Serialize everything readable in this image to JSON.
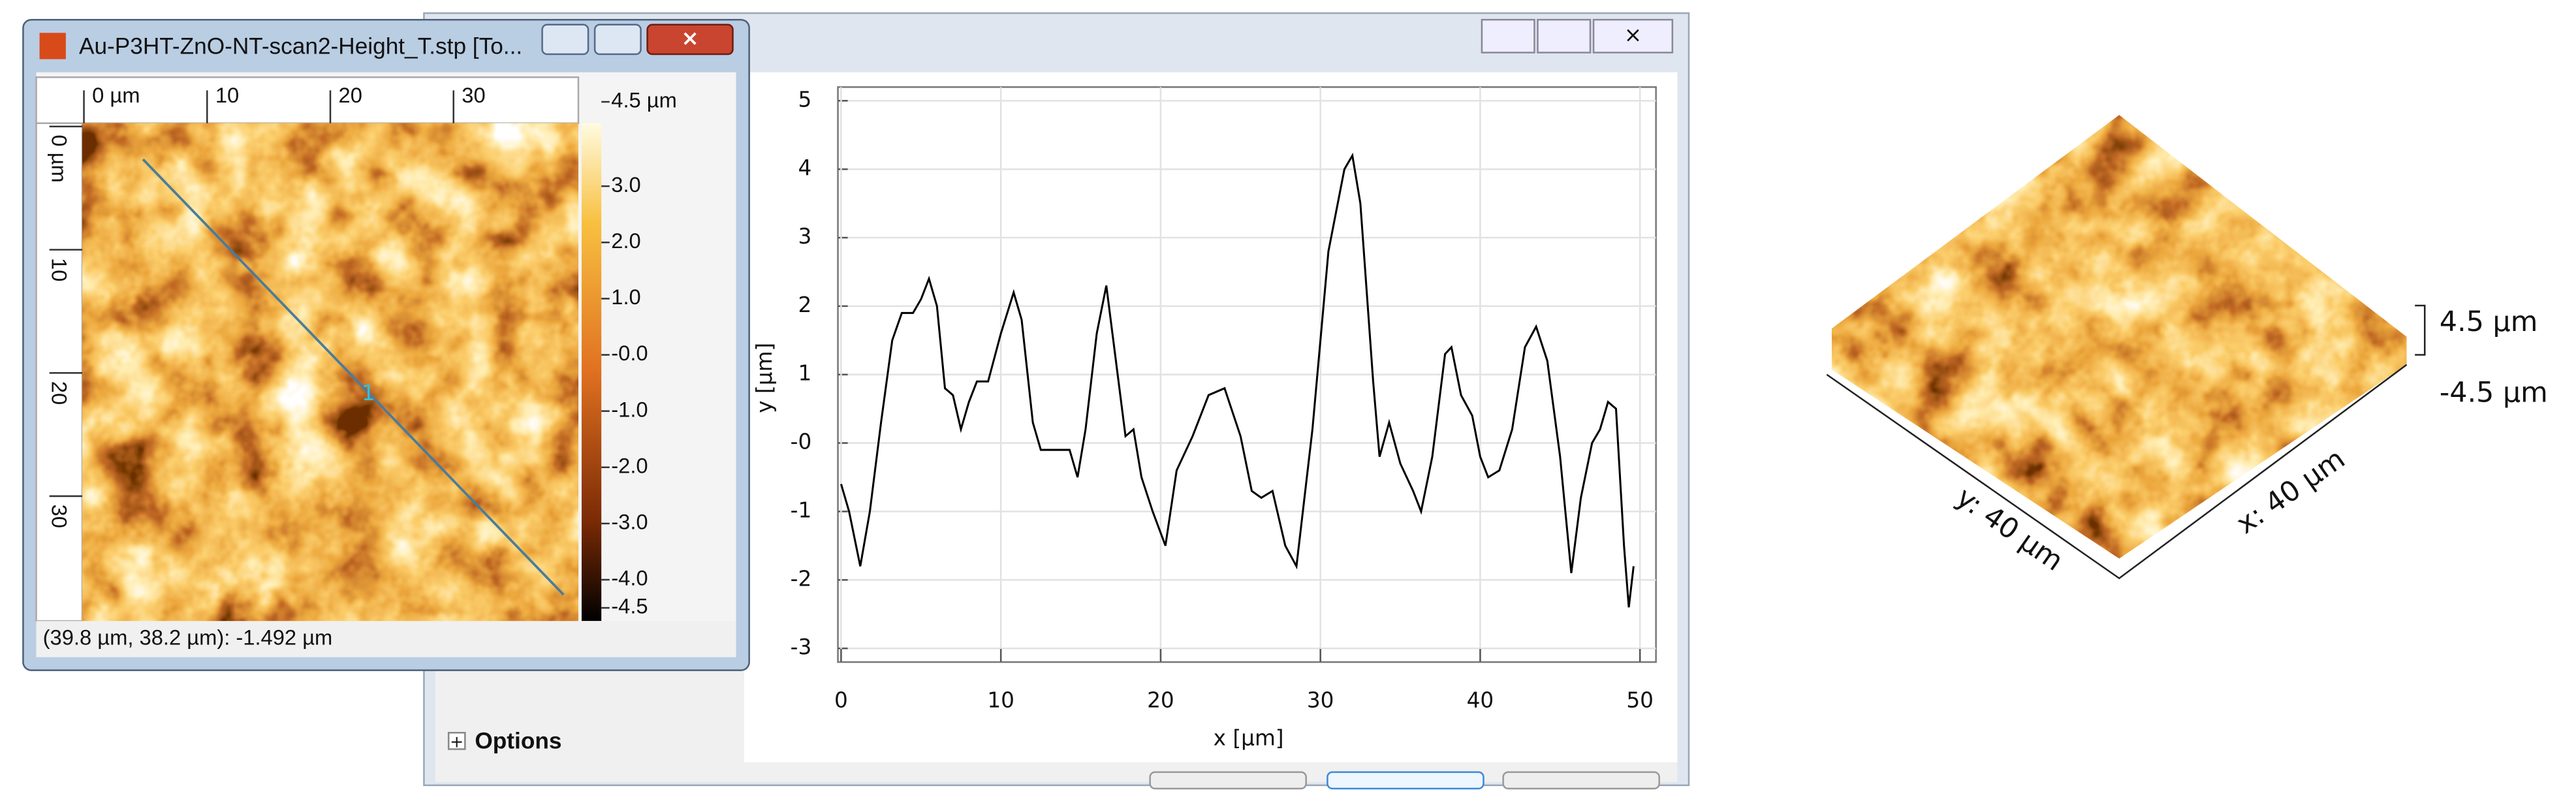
{
  "window": {
    "title": "Au-P3HT-ZnO-NT-scan2-Height_T.stp [To...",
    "status": "(39.8 µm, 38.2 µm): -1.492 µm",
    "profile_label": "1",
    "ruler_x": {
      "xlim": [
        0,
        40
      ],
      "ticks": [
        {
          "value": 0,
          "label": "0 µm"
        },
        10,
        20,
        30
      ]
    },
    "ruler_y": {
      "ylim": [
        0,
        40
      ],
      "ticks": [
        {
          "value": 0,
          "label": "0 µm"
        },
        10,
        20,
        30
      ]
    },
    "colorbar": {
      "zlim": [
        -4.5,
        4.5
      ],
      "ticks": [
        {
          "value": 4.5,
          "label": "4.5 µm"
        },
        {
          "value": 3,
          "label": "3.0"
        },
        {
          "value": 2,
          "label": "2.0"
        },
        {
          "value": 1,
          "label": "1.0"
        },
        {
          "value": 0,
          "label": "-0.0"
        },
        {
          "value": -1,
          "label": "-1.0"
        },
        {
          "value": -2,
          "label": "-2.0"
        },
        {
          "value": -3,
          "label": "-3.0"
        },
        {
          "value": -4,
          "label": "-4.0"
        },
        {
          "value": -4.5,
          "label": "-4.5"
        }
      ]
    }
  },
  "dialog": {
    "options": "Options"
  },
  "chart_data": {
    "type": "line",
    "xlabel": "x [µm]",
    "ylabel": "y [µm]",
    "x": [
      0,
      0.5,
      1.2,
      1.8,
      2.5,
      3.2,
      3.8,
      4.5,
      5,
      5.5,
      6,
      6.5,
      7,
      7.5,
      8,
      8.5,
      9.2,
      10,
      10.8,
      11.3,
      12,
      12.5,
      13.5,
      14.3,
      14.8,
      15.3,
      16,
      16.6,
      17.2,
      17.8,
      18.3,
      18.8,
      19.5,
      20.3,
      21,
      22,
      23,
      24,
      25,
      25.7,
      26.3,
      27,
      27.8,
      28.5,
      29.5,
      30.5,
      31.5,
      32,
      32.5,
      33.3,
      33.7,
      34.3,
      35,
      35.8,
      36.3,
      37,
      37.8,
      38.2,
      38.8,
      39.5,
      40,
      40.5,
      41.2,
      42,
      42.8,
      43.5,
      44.2,
      45,
      45.7,
      46.3,
      47,
      47.5,
      48,
      48.5,
      49,
      49.3,
      49.6
    ],
    "series": [
      {
        "color": "#000000",
        "values": [
          -0.6,
          -1,
          -1.8,
          -1,
          0.3,
          1.5,
          1.9,
          1.9,
          2.1,
          2.4,
          2,
          0.8,
          0.7,
          0.2,
          0.6,
          0.9,
          0.9,
          1.6,
          2.2,
          1.8,
          0.3,
          -0.1,
          -0.1,
          -0.1,
          -0.5,
          0.2,
          1.6,
          2.3,
          1.2,
          0.1,
          0.2,
          -0.5,
          -1,
          -1.5,
          -0.4,
          0.1,
          0.7,
          0.8,
          0.1,
          -0.7,
          -0.8,
          -0.7,
          -1.5,
          -1.8,
          0.2,
          2.8,
          4,
          4.2,
          3.5,
          0.9,
          -0.2,
          0.3,
          -0.3,
          -0.7,
          -1,
          -0.2,
          1.3,
          1.4,
          0.7,
          0.4,
          -0.2,
          -0.5,
          -0.4,
          0.2,
          1.4,
          1.7,
          1.2,
          -0.2,
          -1.9,
          -0.8,
          0,
          0.2,
          0.6,
          0.5,
          -1.5,
          -2.4,
          -1.8
        ]
      }
    ],
    "xlim": [
      -0.2,
      51
    ],
    "ylim": [
      -3.2,
      5.2
    ],
    "xticks": [
      0,
      10,
      20,
      30,
      40,
      50
    ],
    "yticks": [
      5,
      4,
      3,
      2,
      1,
      {
        "value": 0,
        "label": "-0"
      },
      -1,
      -2,
      -3
    ],
    "grid": true
  },
  "view3d": {
    "x_label": "x: 40 µm",
    "y_label": "y: 40 µm",
    "z_max": "4.5 µm",
    "z_min": "-4.5 µm"
  }
}
